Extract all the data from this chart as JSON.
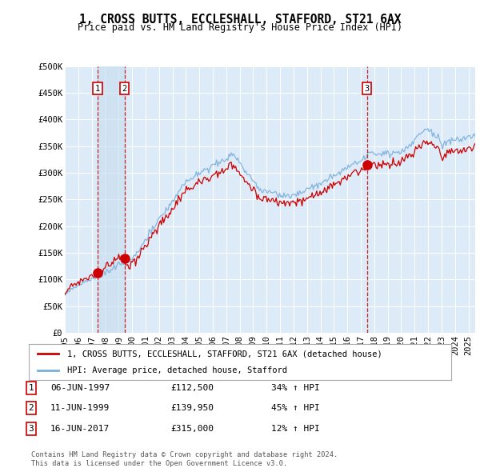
{
  "title": "1, CROSS BUTTS, ECCLESHALL, STAFFORD, ST21 6AX",
  "subtitle": "Price paid vs. HM Land Registry's House Price Index (HPI)",
  "ylim": [
    0,
    500000
  ],
  "yticks": [
    0,
    50000,
    100000,
    150000,
    200000,
    250000,
    300000,
    350000,
    400000,
    450000,
    500000
  ],
  "ytick_labels": [
    "£0",
    "£50K",
    "£100K",
    "£150K",
    "£200K",
    "£250K",
    "£300K",
    "£350K",
    "£400K",
    "£450K",
    "£500K"
  ],
  "sale_color": "#cc0000",
  "hpi_color": "#7aafdc",
  "shade_color": "#d0e4f5",
  "background_color": "#ddeaf7",
  "grid_color": "#ffffff",
  "purchases": [
    {
      "num": 1,
      "date_str": "06-JUN-1997",
      "year": 1997.44,
      "price": 112500,
      "pct": "34%",
      "label": "1"
    },
    {
      "num": 2,
      "date_str": "11-JUN-1999",
      "year": 1999.44,
      "price": 139950,
      "pct": "45%",
      "label": "2"
    },
    {
      "num": 3,
      "date_str": "16-JUN-2017",
      "year": 2017.45,
      "price": 315000,
      "pct": "12%",
      "label": "3"
    }
  ],
  "legend_sale_label": "1, CROSS BUTTS, ECCLESHALL, STAFFORD, ST21 6AX (detached house)",
  "legend_hpi_label": "HPI: Average price, detached house, Stafford",
  "footer1": "Contains HM Land Registry data © Crown copyright and database right 2024.",
  "footer2": "This data is licensed under the Open Government Licence v3.0.",
  "xlim_start": 1995.0,
  "xlim_end": 2025.5,
  "xticks": [
    1995,
    1996,
    1997,
    1998,
    1999,
    2000,
    2001,
    2002,
    2003,
    2004,
    2005,
    2006,
    2007,
    2008,
    2009,
    2010,
    2011,
    2012,
    2013,
    2014,
    2015,
    2016,
    2017,
    2018,
    2019,
    2020,
    2021,
    2022,
    2023,
    2024,
    2025
  ]
}
